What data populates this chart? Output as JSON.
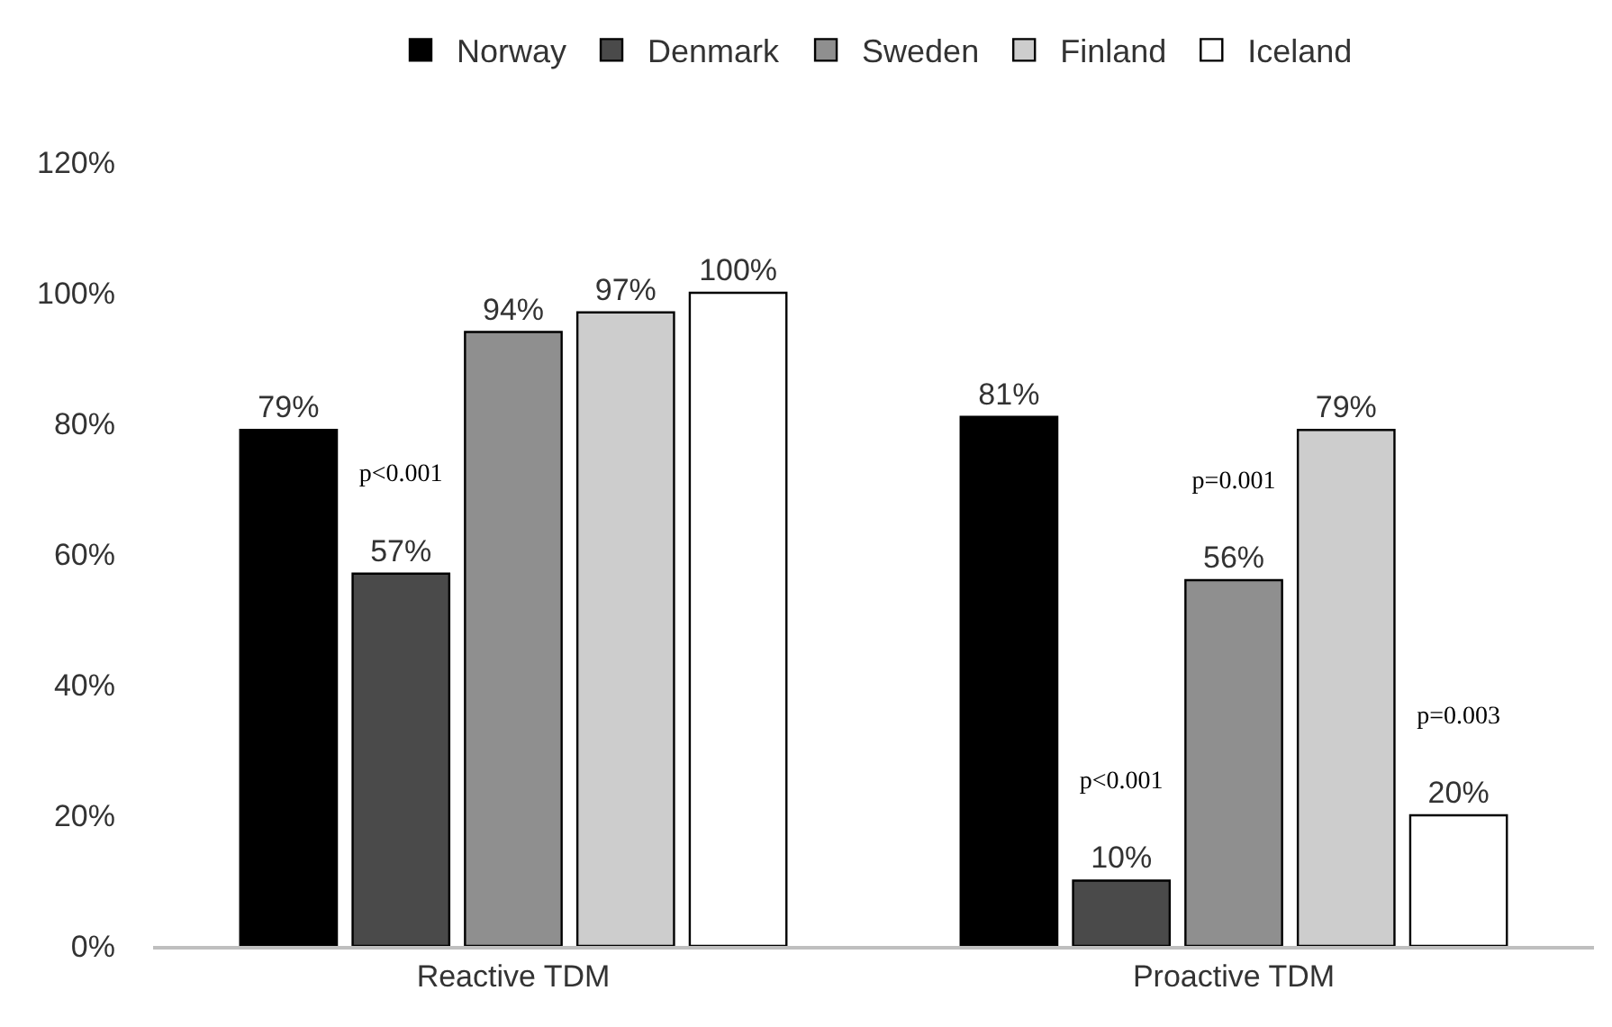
{
  "chart_data": {
    "type": "bar",
    "categories": [
      "Reactive TDM",
      "Proactive TDM"
    ],
    "series": [
      {
        "name": "Norway",
        "color": "#000000",
        "values": [
          79,
          81
        ],
        "value_labels": [
          "79%",
          "81%"
        ]
      },
      {
        "name": "Denmark",
        "color": "#4a4a4a",
        "values": [
          57,
          10
        ],
        "value_labels": [
          "p<0.001\n57%",
          "p<0.001\n10%"
        ]
      },
      {
        "name": "Sweden",
        "color": "#8f8f8f",
        "values": [
          94,
          56
        ],
        "value_labels": [
          "94%",
          "p=0.001\n56%"
        ]
      },
      {
        "name": "Finland",
        "color": "#cdcdcd",
        "values": [
          97,
          79
        ],
        "value_labels": [
          "97%",
          "79%"
        ]
      },
      {
        "name": "Iceland",
        "color": "#ffffff",
        "values": [
          100,
          20
        ],
        "value_labels": [
          "100%",
          "p=0.003\n20%"
        ]
      }
    ],
    "ylim": [
      0,
      120
    ],
    "yticks": [
      {
        "value": 0,
        "label": "0%"
      },
      {
        "value": 20,
        "label": "20%"
      },
      {
        "value": 40,
        "label": "40%"
      },
      {
        "value": 60,
        "label": "60%"
      },
      {
        "value": 80,
        "label": "80%"
      },
      {
        "value": 100,
        "label": "100%"
      },
      {
        "value": 120,
        "label": "120%"
      }
    ],
    "grid": false,
    "legend": "top"
  }
}
